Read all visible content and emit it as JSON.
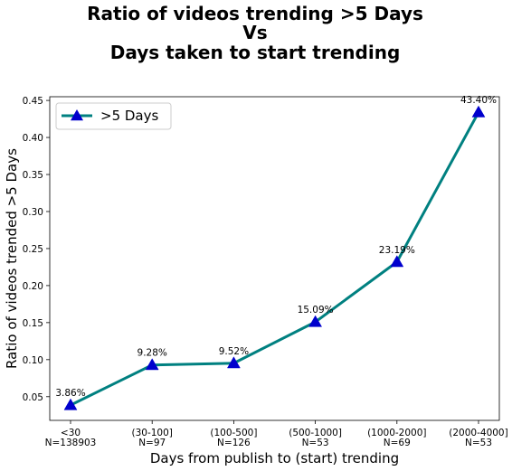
{
  "chart_data": {
    "type": "line",
    "title_lines": [
      "Ratio of videos trending >5 Days",
      "Vs",
      "Days taken to start trending"
    ],
    "xlabel": "Days from publish to (start) trending",
    "ylabel": "Ratio of videos trended >5 Days",
    "categories": [
      [
        "<30",
        "N=138903"
      ],
      [
        "(30-100]",
        "N=97"
      ],
      [
        "(100-500]",
        "N=126"
      ],
      [
        "(500-1000]",
        "N=53"
      ],
      [
        "(1000-2000]",
        "N=69"
      ],
      [
        "(2000-4000]",
        "N=53"
      ]
    ],
    "series": [
      {
        "name": ">5 Days",
        "values": [
          0.0386,
          0.0928,
          0.0952,
          0.1509,
          0.2319,
          0.434
        ],
        "labels": [
          "3.86%",
          "9.28%",
          "9.52%",
          "15.09%",
          "23.19%",
          "43.40%"
        ],
        "line_color": "#008080",
        "marker": "triangle-up",
        "marker_color": "#0000cd"
      }
    ],
    "yticks": [
      "0.05",
      "0.10",
      "0.15",
      "0.20",
      "0.25",
      "0.30",
      "0.35",
      "0.40",
      "0.45"
    ],
    "ylim": [
      0.018,
      0.455
    ],
    "grid": false,
    "legend_position": "top-left"
  }
}
